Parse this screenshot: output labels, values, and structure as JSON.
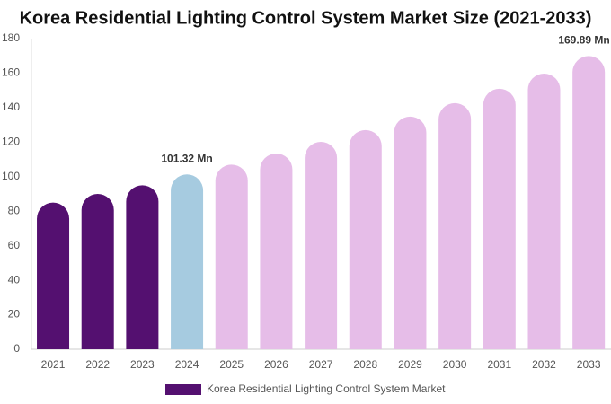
{
  "chart_data": {
    "type": "bar",
    "title": "Korea Residential Lighting Control System Market Size (2021-2033)",
    "categories": [
      "2021",
      "2022",
      "2023",
      "2024",
      "2025",
      "2026",
      "2027",
      "2028",
      "2029",
      "2030",
      "2031",
      "2032",
      "2033"
    ],
    "series": [
      {
        "name": "Korea Residential Lighting Control System Market",
        "color": "#541070",
        "values": [
          85,
          90,
          95,
          101.32,
          107,
          113.4,
          120.2,
          127,
          134.8,
          142.6,
          150.9,
          159.7,
          169.89
        ],
        "colors": [
          "#541070",
          "#541070",
          "#541070",
          "#a6cbe0",
          "#e6bde8",
          "#e6bde8",
          "#e6bde8",
          "#e6bde8",
          "#e6bde8",
          "#e6bde8",
          "#e6bde8",
          "#e6bde8",
          "#e6bde8"
        ],
        "value_labels": [
          null,
          null,
          null,
          "101.32 Mn",
          null,
          null,
          null,
          null,
          null,
          null,
          null,
          null,
          "169.89 Mn"
        ]
      }
    ],
    "ylim": [
      0,
      180
    ],
    "yticks": [
      0,
      20,
      40,
      60,
      80,
      100,
      120,
      140,
      160,
      180
    ],
    "grid": false
  }
}
